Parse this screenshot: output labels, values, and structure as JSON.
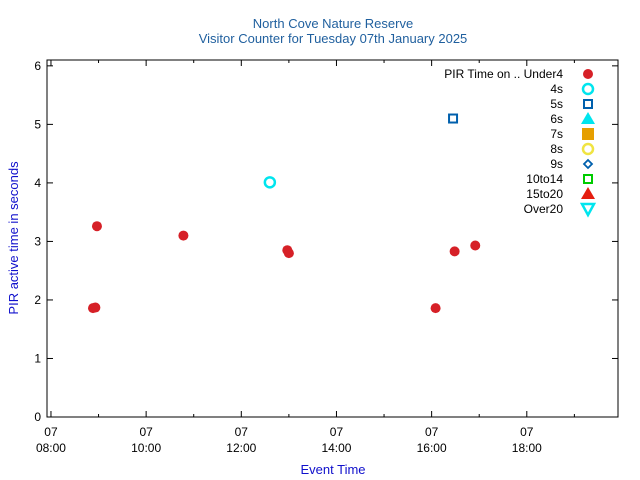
{
  "chart_data": {
    "type": "scatter",
    "title": "North Cove Nature Reserve",
    "subtitle": "Visitor Counter for Tuesday 07th January 2025",
    "xlabel": "Event Time",
    "ylabel": "PIR active time in seconds",
    "xlim": [
      "07:55",
      "19:55"
    ],
    "ylim": [
      0,
      6.1
    ],
    "x_ticks": [
      {
        "x": "08:00",
        "day": "07",
        "time": "08:00"
      },
      {
        "x": "10:00",
        "day": "07",
        "time": "10:00"
      },
      {
        "x": "12:00",
        "day": "07",
        "time": "12:00"
      },
      {
        "x": "14:00",
        "day": "07",
        "time": "14:00"
      },
      {
        "x": "16:00",
        "day": "07",
        "time": "16:00"
      },
      {
        "x": "18:00",
        "day": "07",
        "time": "18:00"
      }
    ],
    "y_ticks": [
      0,
      1,
      2,
      3,
      4,
      5,
      6
    ],
    "grid": false,
    "legend_title": "PIR Time on ..",
    "legend_position": "top-right",
    "series": [
      {
        "name": "Under4",
        "marker": "filled-circle",
        "color": "#d62027",
        "points": [
          {
            "x": "08:53",
            "y": 1.86
          },
          {
            "x": "08:56",
            "y": 1.87
          },
          {
            "x": "08:58",
            "y": 3.26
          },
          {
            "x": "10:47",
            "y": 3.1
          },
          {
            "x": "12:58",
            "y": 2.85
          },
          {
            "x": "13:00",
            "y": 2.8
          },
          {
            "x": "16:05",
            "y": 1.86
          },
          {
            "x": "16:29",
            "y": 2.83
          },
          {
            "x": "16:55",
            "y": 2.93
          }
        ]
      },
      {
        "name": "4s",
        "marker": "open-circle",
        "color": "#00e5ee",
        "points": [
          {
            "x": "12:36",
            "y": 4.01
          }
        ]
      },
      {
        "name": "5s",
        "marker": "open-square",
        "color": "#0060ad",
        "points": [
          {
            "x": "16:27",
            "y": 5.1
          }
        ]
      },
      {
        "name": "6s",
        "marker": "filled-triangle-up",
        "color": "#00e5ee",
        "points": []
      },
      {
        "name": "7s",
        "marker": "filled-square",
        "color": "#e69f00",
        "points": []
      },
      {
        "name": "8s",
        "marker": "open-circle",
        "color": "#f0e442",
        "points": []
      },
      {
        "name": "9s",
        "marker": "open-diamond",
        "color": "#0060ad",
        "points": []
      },
      {
        "name": "10to14",
        "marker": "open-square",
        "color": "#00cc00",
        "points": []
      },
      {
        "name": "15to20",
        "marker": "filled-triangle-up",
        "color": "#e51e10",
        "points": []
      },
      {
        "name": "Over20",
        "marker": "open-triangle-down",
        "color": "#00e5ee",
        "points": []
      }
    ],
    "colors": {
      "title": "#1f5f9e",
      "axis_label": "#1010cc",
      "axis": "#000000"
    }
  }
}
